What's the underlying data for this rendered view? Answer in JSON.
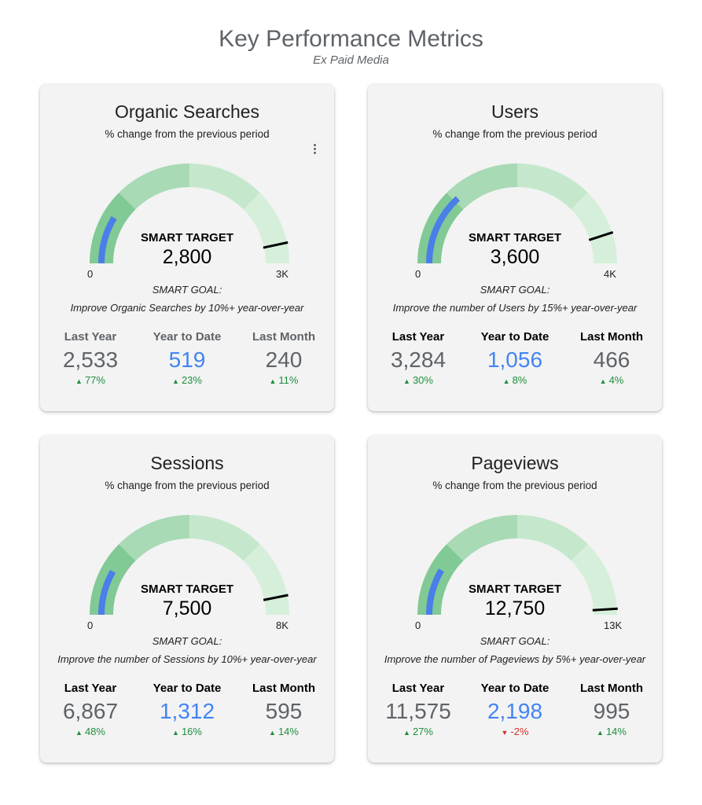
{
  "header": {
    "title": "Key Performance Metrics",
    "subtitle": "Ex Paid Media"
  },
  "cards": [
    {
      "title": "Organic Searches",
      "subtitle": "% change from the previous period",
      "target_label": "SMART TARGET",
      "target_value": "2,800",
      "axis_min": "0",
      "axis_max": "3K",
      "gauge": {
        "min": 0,
        "max": 3000,
        "value": 519,
        "target": 2800
      },
      "goal_label": "SMART GOAL:",
      "goal_text": "Improve Organic Searches by 10%+ year-over-year",
      "stats": [
        {
          "label": "Last Year",
          "value": "2,533",
          "change": "77%",
          "direction": "up"
        },
        {
          "label": "Year to Date",
          "value": "519",
          "change": "23%",
          "direction": "up"
        },
        {
          "label": "Last Month",
          "value": "240",
          "change": "11%",
          "direction": "up"
        }
      ]
    },
    {
      "title": "Users",
      "subtitle": "% change from the previous period",
      "target_label": "SMART TARGET",
      "target_value": "3,600",
      "axis_min": "0",
      "axis_max": "4K",
      "gauge": {
        "min": 0,
        "max": 4000,
        "value": 1056,
        "target": 3600
      },
      "goal_label": "SMART GOAL:",
      "goal_text": "Improve the number of Users by 15%+ year-over-year",
      "stats": [
        {
          "label": "Last Year",
          "value": "3,284",
          "change": "30%",
          "direction": "up"
        },
        {
          "label": "Year to Date",
          "value": "1,056",
          "change": "8%",
          "direction": "up"
        },
        {
          "label": "Last Month",
          "value": "466",
          "change": "4%",
          "direction": "up"
        }
      ]
    },
    {
      "title": "Sessions",
      "subtitle": "% change from the previous period",
      "target_label": "SMART TARGET",
      "target_value": "7,500",
      "axis_min": "0",
      "axis_max": "8K",
      "gauge": {
        "min": 0,
        "max": 8000,
        "value": 1312,
        "target": 7500
      },
      "goal_label": "SMART GOAL:",
      "goal_text": "Improve the number of Sessions by 10%+ year-over-year",
      "stats": [
        {
          "label": "Last Year",
          "value": "6,867",
          "change": "48%",
          "direction": "up"
        },
        {
          "label": "Year to Date",
          "value": "1,312",
          "change": "16%",
          "direction": "up"
        },
        {
          "label": "Last Month",
          "value": "595",
          "change": "14%",
          "direction": "up"
        }
      ]
    },
    {
      "title": "Pageviews",
      "subtitle": "% change from the previous period",
      "target_label": "SMART TARGET",
      "target_value": "12,750",
      "axis_min": "0",
      "axis_max": "13K",
      "gauge": {
        "min": 0,
        "max": 13000,
        "value": 2198,
        "target": 12750
      },
      "goal_label": "SMART GOAL:",
      "goal_text": "Improve the number of Pageviews by 5%+ year-over-year",
      "stats": [
        {
          "label": "Last Year",
          "value": "11,575",
          "change": "27%",
          "direction": "up"
        },
        {
          "label": "Year to Date",
          "value": "2,198",
          "change": "-2%",
          "direction": "down"
        },
        {
          "label": "Last Month",
          "value": "995",
          "change": "14%",
          "direction": "up"
        }
      ]
    }
  ],
  "colors": {
    "band_1": "#81c995",
    "band_2": "#a8dab5",
    "band_3": "#c5e8cd",
    "band_4": "#d6efdb",
    "value_bar": "#4a7ee8",
    "target_marker": "#000000",
    "change_up": "#1e8e3e",
    "change_down": "#d93025",
    "ytd_value": "#4285f4"
  },
  "icons": {
    "up": "arrow-up-icon",
    "down": "arrow-down-icon",
    "menu": "more-vert-icon"
  }
}
